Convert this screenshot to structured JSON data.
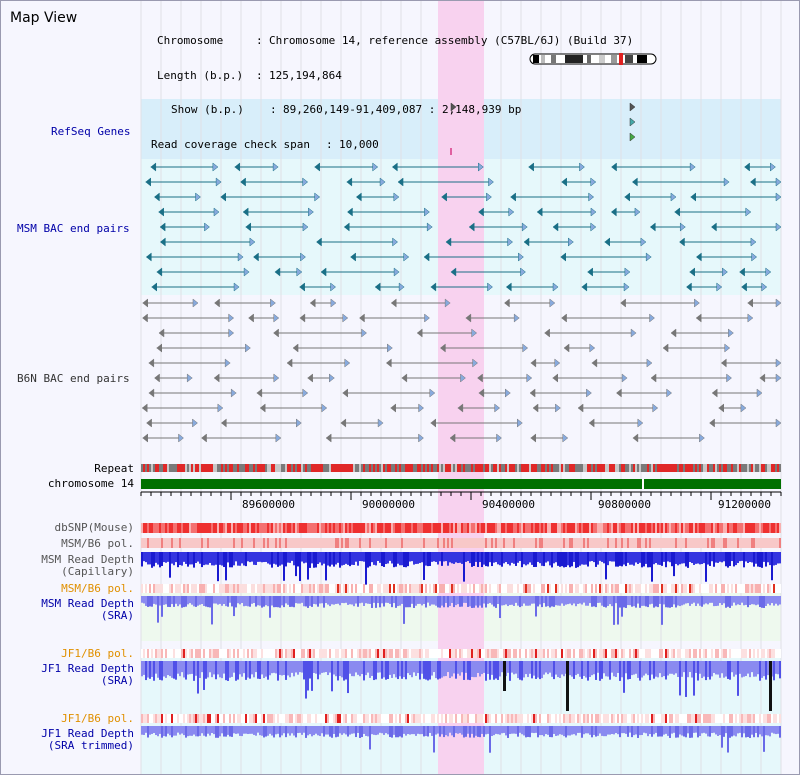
{
  "page": {
    "title": "Map View"
  },
  "info": {
    "chromosome_key": "Chromosome",
    "chromosome_val": "Chromosome 14, reference assembly (C57BL/6J) (Build 37)",
    "length_key": "Length (b.p.)",
    "length_val": "125,194,864",
    "show_key": "Show (b.p.)",
    "show_val": "89,260,149-91,409,087 : 2,148,939 bp",
    "coverage_key": "Read coverage check span",
    "coverage_val": "10,000"
  },
  "tracks": {
    "refseq": "RefSeq Genes",
    "msm_bac": "MSM BAC end pairs",
    "b6n_bac": "B6N BAC end pairs",
    "repeat": "Repeat",
    "chromosome": "chromosome 14",
    "dbsnp": "dbSNP(Mouse)",
    "msm_b6_pol_1": "MSM/B6 pol.",
    "msm_read_depth_cap_1": "MSM Read Depth",
    "msm_read_depth_cap_2": "(Capillary)",
    "msm_b6_pol_2": "MSM/B6 pol.",
    "msm_read_depth_sra_1": "MSM Read Depth",
    "msm_read_depth_sra_2": "(SRA)",
    "jf1_b6_pol_1": "JF1/B6 pol.",
    "jf1_read_depth_1": "JF1 Read Depth",
    "jf1_read_depth_2": "(SRA)",
    "jf1_b6_pol_2": "JF1/B6 pol.",
    "jf1_read_depth_trim_1": "JF1 Read Depth",
    "jf1_read_depth_trim_2": "(SRA trimmed)"
  },
  "axis": {
    "ticks": [
      "89600000",
      "90000000",
      "90400000",
      "90800000",
      "91200000"
    ]
  },
  "colors": {
    "highlight": "#f8d2ef",
    "refseq_bg": "#d8eefa",
    "msm_bg": "#e6f8fb",
    "msm_pair": "#1a6f86",
    "b6n_pair": "#777777",
    "chromosome_green": "#007000",
    "depth_blue": "#1a1ad0",
    "depth_light": "#8a8af0"
  }
}
